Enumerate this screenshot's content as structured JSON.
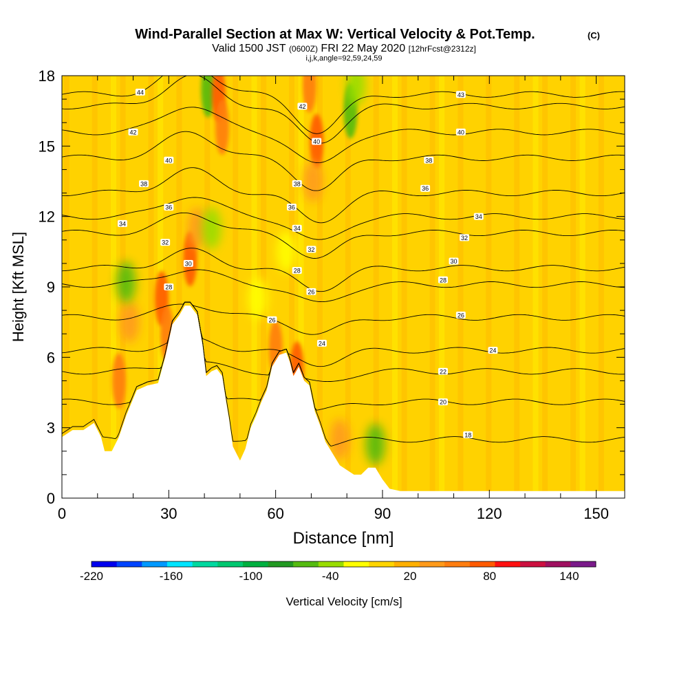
{
  "chart_data": {
    "type": "heatmap",
    "title": "Wind-Parallel Section at Max W: Vertical Velocity & Pot.Temp.",
    "copyright": "(C)",
    "subtitle_main": "Valid 1500 JST",
    "subtitle_utc": "(0600Z)",
    "subtitle_date": "FRI 22 May 2020",
    "subtitle_fcst": "[12hrFcst@2312z]",
    "subtitle_indices": "i,j,k,angle=92,59,24,59",
    "xlabel": "Distance [nm]",
    "ylabel": "Height [Kft MSL]",
    "xlim": [
      0,
      158
    ],
    "ylim": [
      0,
      18
    ],
    "x_ticks": [
      "0",
      "30",
      "60",
      "90",
      "120",
      "150"
    ],
    "x_tick_values": [
      0,
      30,
      60,
      90,
      120,
      150
    ],
    "y_ticks": [
      "0",
      "3",
      "6",
      "9",
      "12",
      "15",
      "18"
    ],
    "y_tick_values": [
      0,
      3,
      6,
      9,
      12,
      15,
      18
    ],
    "colorbar": {
      "label": "Vertical Velocity [cm/s]",
      "min": -220,
      "max": 160,
      "step": 20,
      "tick_labels": [
        "-220",
        "-160",
        "-100",
        "-40",
        "20",
        "80",
        "140"
      ],
      "tick_values": [
        -220,
        -160,
        -100,
        -40,
        20,
        80,
        140
      ],
      "colors": [
        "#0000ee",
        "#0044ff",
        "#0099ff",
        "#00e5ff",
        "#00d9a0",
        "#00c870",
        "#00b040",
        "#229922",
        "#55bb11",
        "#99dd00",
        "#ffff00",
        "#ffd500",
        "#ffb000",
        "#ff9a1a",
        "#ff7d10",
        "#ff5a00",
        "#ff1010",
        "#cc1040",
        "#a01060",
        "#7a1a8a"
      ]
    },
    "terrain": [
      [
        0,
        2.6
      ],
      [
        3,
        2.9
      ],
      [
        6,
        2.9
      ],
      [
        9,
        3.2
      ],
      [
        11,
        2.6
      ],
      [
        12,
        2.0
      ],
      [
        14,
        2.0
      ],
      [
        16,
        2.6
      ],
      [
        18,
        3.5
      ],
      [
        21,
        4.6
      ],
      [
        24,
        4.8
      ],
      [
        27,
        4.9
      ],
      [
        29,
        6.0
      ],
      [
        31,
        7.4
      ],
      [
        33,
        7.8
      ],
      [
        34.5,
        8.2
      ],
      [
        36,
        8.2
      ],
      [
        38,
        7.8
      ],
      [
        39.5,
        6.5
      ],
      [
        40.5,
        5.2
      ],
      [
        42,
        5.4
      ],
      [
        43.5,
        5.5
      ],
      [
        45,
        5.2
      ],
      [
        46,
        4.2
      ],
      [
        47,
        3.3
      ],
      [
        48,
        2.2
      ],
      [
        49,
        1.9
      ],
      [
        50,
        1.6
      ],
      [
        51.5,
        2.1
      ],
      [
        53,
        3.0
      ],
      [
        54.5,
        3.5
      ],
      [
        56,
        4.1
      ],
      [
        57.5,
        4.6
      ],
      [
        59,
        5.6
      ],
      [
        61,
        6.1
      ],
      [
        63,
        6.2
      ],
      [
        64,
        5.8
      ],
      [
        65,
        5.2
      ],
      [
        66.5,
        5.6
      ],
      [
        68,
        5.0
      ],
      [
        69.5,
        4.8
      ],
      [
        71,
        3.7
      ],
      [
        72.5,
        3.1
      ],
      [
        74,
        2.4
      ],
      [
        76,
        1.9
      ],
      [
        78,
        1.4
      ],
      [
        80,
        1.2
      ],
      [
        82,
        1.0
      ],
      [
        84,
        1.0
      ],
      [
        86,
        1.3
      ],
      [
        88,
        1.3
      ],
      [
        90,
        0.8
      ],
      [
        92,
        0.4
      ],
      [
        95,
        0.3
      ],
      [
        158,
        0.3
      ]
    ],
    "theta_contours": [
      {
        "value": 18,
        "base_height": 2.5
      },
      {
        "value": 20,
        "base_height": 4.1
      },
      {
        "value": 22,
        "base_height": 5.4
      },
      {
        "value": 24,
        "base_height": 6.3
      },
      {
        "value": 26,
        "base_height": 7.7
      },
      {
        "value": 28,
        "base_height": 9.1
      },
      {
        "value": 30,
        "base_height": 9.8
      },
      {
        "value": 32,
        "base_height": 11.3
      },
      {
        "value": 34,
        "base_height": 12.0
      },
      {
        "value": 36,
        "base_height": 13.0
      },
      {
        "value": 38,
        "base_height": 14.5
      },
      {
        "value": 40,
        "base_height": 15.6
      },
      {
        "value": 42,
        "base_height": 16.7
      },
      {
        "value": 44,
        "base_height": 17.2
      }
    ],
    "contour_labels": [
      {
        "text": "44",
        "x": 22,
        "y": 17.3
      },
      {
        "text": "42",
        "x": 20,
        "y": 15.6
      },
      {
        "text": "40",
        "x": 30,
        "y": 14.4
      },
      {
        "text": "38",
        "x": 23,
        "y": 13.4
      },
      {
        "text": "36",
        "x": 30,
        "y": 12.4
      },
      {
        "text": "34",
        "x": 17,
        "y": 11.7
      },
      {
        "text": "32",
        "x": 29,
        "y": 10.9
      },
      {
        "text": "30",
        "x": 35.5,
        "y": 10.0
      },
      {
        "text": "28",
        "x": 30,
        "y": 9.0
      },
      {
        "text": "26",
        "x": 59,
        "y": 7.6
      },
      {
        "text": "24",
        "x": 73,
        "y": 6.6
      },
      {
        "text": "26",
        "x": 70,
        "y": 8.8
      },
      {
        "text": "28",
        "x": 66,
        "y": 9.7
      },
      {
        "text": "32",
        "x": 70,
        "y": 10.6
      },
      {
        "text": "34",
        "x": 66,
        "y": 11.5
      },
      {
        "text": "36",
        "x": 64.5,
        "y": 12.4
      },
      {
        "text": "38",
        "x": 66,
        "y": 13.4
      },
      {
        "text": "40",
        "x": 71.5,
        "y": 15.2
      },
      {
        "text": "42",
        "x": 67.5,
        "y": 16.7
      },
      {
        "text": "43",
        "x": 112,
        "y": 17.2
      },
      {
        "text": "40",
        "x": 112,
        "y": 15.6
      },
      {
        "text": "38",
        "x": 103,
        "y": 14.4
      },
      {
        "text": "36",
        "x": 102,
        "y": 13.2
      },
      {
        "text": "34",
        "x": 117,
        "y": 12.0
      },
      {
        "text": "32",
        "x": 113,
        "y": 11.1
      },
      {
        "text": "30",
        "x": 110,
        "y": 10.1
      },
      {
        "text": "28",
        "x": 107,
        "y": 9.3
      },
      {
        "text": "26",
        "x": 112,
        "y": 7.8
      },
      {
        "text": "24",
        "x": 121,
        "y": 6.3
      },
      {
        "text": "22",
        "x": 107,
        "y": 5.4
      },
      {
        "text": "20",
        "x": 107,
        "y": 4.1
      },
      {
        "text": "18",
        "x": 114,
        "y": 2.7
      }
    ],
    "velocity_features": [
      {
        "x": 16,
        "y": 5.0,
        "value": 70
      },
      {
        "x": 19,
        "y": 7.5,
        "value": 40
      },
      {
        "x": 18,
        "y": 9.2,
        "value": -50
      },
      {
        "x": 28,
        "y": 8.5,
        "value": 80
      },
      {
        "x": 29.5,
        "y": 7.0,
        "value": 70
      },
      {
        "x": 36,
        "y": 10.2,
        "value": 90
      },
      {
        "x": 38,
        "y": 11.5,
        "value": 50
      },
      {
        "x": 42,
        "y": 11.5,
        "value": -40
      },
      {
        "x": 41,
        "y": 17.4,
        "value": -60
      },
      {
        "x": 44,
        "y": 17.2,
        "value": 90
      },
      {
        "x": 45,
        "y": 15.8,
        "value": 60
      },
      {
        "x": 60,
        "y": 6.4,
        "value": 70
      },
      {
        "x": 66,
        "y": 5.5,
        "value": 80
      },
      {
        "x": 69.5,
        "y": 17.6,
        "value": 60
      },
      {
        "x": 71.5,
        "y": 15.2,
        "value": 90
      },
      {
        "x": 70.5,
        "y": 13.5,
        "value": 50
      },
      {
        "x": 81,
        "y": 16.5,
        "value": -60
      },
      {
        "x": 82.5,
        "y": 17.6,
        "value": -40
      },
      {
        "x": 88,
        "y": 2.3,
        "value": -50
      },
      {
        "x": 78,
        "y": 2.5,
        "value": 40
      },
      {
        "x": 63,
        "y": 10.5,
        "value": -20
      },
      {
        "x": 55,
        "y": 8.5,
        "value": -20
      }
    ]
  }
}
